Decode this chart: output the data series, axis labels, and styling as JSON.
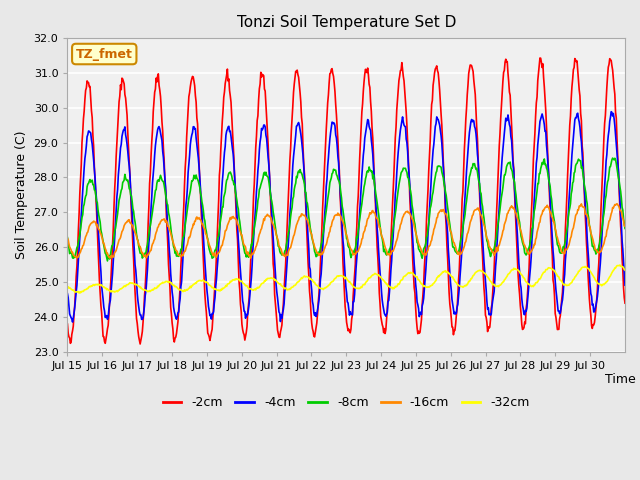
{
  "title": "Tonzi Soil Temperature Set D",
  "xlabel": "Time",
  "ylabel": "Soil Temperature (C)",
  "annotation": "TZ_fmet",
  "ylim": [
    23.0,
    32.0
  ],
  "yticks": [
    23.0,
    24.0,
    25.0,
    26.0,
    27.0,
    28.0,
    29.0,
    30.0,
    31.0,
    32.0
  ],
  "xtick_labels": [
    "Jul 15",
    "Jul 16",
    "Jul 17",
    "Jul 18",
    "Jul 19",
    "Jul 20",
    "Jul 21",
    "Jul 22",
    "Jul 23",
    "Jul 24",
    "Jul 25",
    "Jul 26",
    "Jul 27",
    "Jul 28",
    "Jul 29",
    "Jul 30"
  ],
  "colors": [
    "#ff0000",
    "#0000ff",
    "#00cc00",
    "#ff8800",
    "#ffff00"
  ],
  "labels": [
    "-2cm",
    "-4cm",
    "-8cm",
    "-16cm",
    "-32cm"
  ],
  "bg_color": "#e8e8e8",
  "plot_bg": "#f0f0f0",
  "grid_color": "#ffffff",
  "n_days": 16,
  "points_per_day": 48
}
